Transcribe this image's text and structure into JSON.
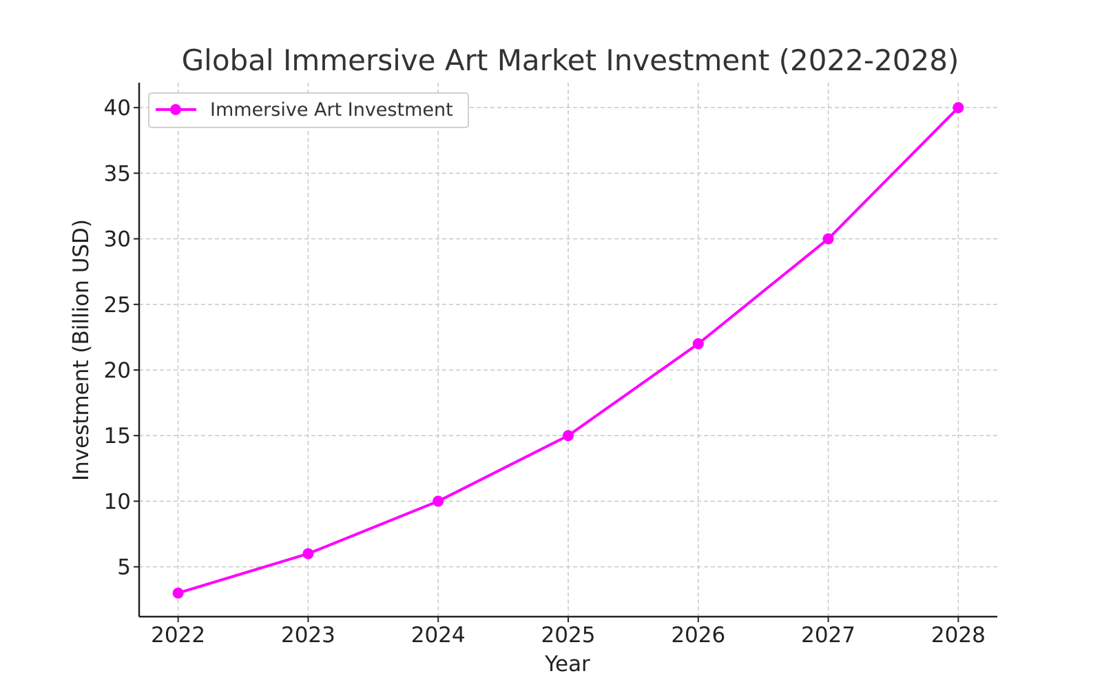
{
  "chart_data": {
    "type": "line",
    "title": "Global Immersive Art Market Investment (2022-2028)",
    "xlabel": "Year",
    "ylabel": "Investment (Billion USD)",
    "x": [
      2022,
      2023,
      2024,
      2025,
      2026,
      2027,
      2028
    ],
    "x_tick_labels": [
      "2022",
      "2023",
      "2024",
      "2025",
      "2026",
      "2027",
      "2028"
    ],
    "y_ticks": [
      5,
      10,
      15,
      20,
      25,
      30,
      35,
      40
    ],
    "y_tick_labels": [
      "5",
      "10",
      "15",
      "20",
      "25",
      "30",
      "35",
      "40"
    ],
    "xlim": [
      2021.7,
      2028.3
    ],
    "ylim": [
      1.2,
      41.9
    ],
    "grid": true,
    "legend_position": "top-left",
    "series": [
      {
        "name": "Immersive Art Investment",
        "color": "#ff00ff",
        "marker": "circle",
        "values": [
          3,
          6,
          10,
          15,
          22,
          30,
          40
        ]
      }
    ]
  }
}
